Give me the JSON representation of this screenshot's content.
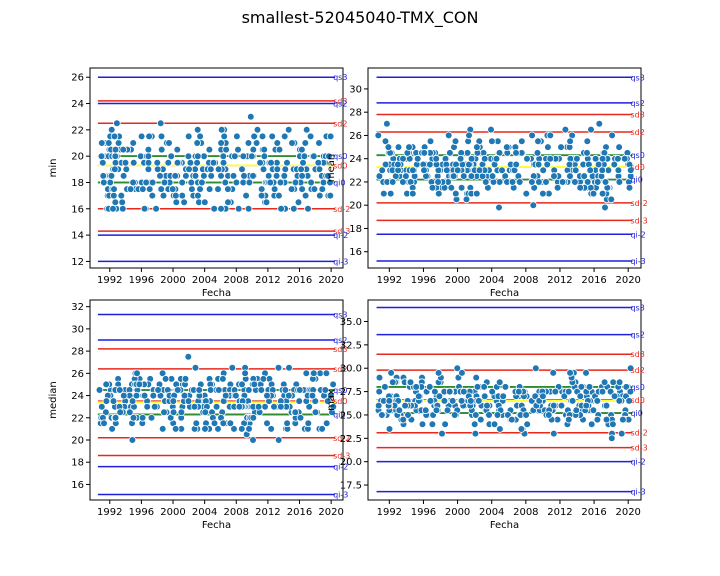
{
  "figure": {
    "suptitle": "smallest-52045040-TMX_CON",
    "colors": {
      "points": "#1f77b4",
      "qi_lines": "#1f1fdd",
      "sd_lines": "#e8281c",
      "mean_line": "#2e8b2e",
      "median_line": "#ffff33"
    }
  },
  "chart_data": [
    {
      "type": "scatter",
      "title": "",
      "xlabel": "Fecha",
      "ylabel": "min",
      "xlim": [
        1989.5,
        2021.5
      ],
      "ylim": [
        11.5,
        26.7
      ],
      "xticks": [
        1992,
        1996,
        2000,
        2004,
        2008,
        2012,
        2016,
        2020
      ],
      "yticks": [
        12,
        14,
        16,
        18,
        20,
        22,
        24,
        26
      ],
      "ytick_labels": [
        "12",
        "14",
        "16",
        "18",
        "20",
        "22",
        "24",
        "26"
      ],
      "hlines": [
        {
          "label": "qs3",
          "value": 26.0,
          "kind": "qi"
        },
        {
          "label": "sd3",
          "value": 24.2,
          "kind": "sd"
        },
        {
          "label": "qs2",
          "value": 24.0,
          "kind": "qi"
        },
        {
          "label": "sd2",
          "value": 22.5,
          "kind": "sd"
        },
        {
          "label": "qs0",
          "value": 20.0,
          "kind": "qi"
        },
        {
          "label": "sd0",
          "value": 19.3,
          "kind": "sd"
        },
        {
          "label": "qi0",
          "value": 18.0,
          "kind": "qi"
        },
        {
          "label": "sd-2",
          "value": 16.0,
          "kind": "sd"
        },
        {
          "label": "sd-3",
          "value": 14.3,
          "kind": "sd"
        },
        {
          "label": "qi-2",
          "value": 14.0,
          "kind": "qi"
        },
        {
          "label": "qi-3",
          "value": 12.0,
          "kind": "qi"
        }
      ],
      "mean": 20.0,
      "median": 19.3,
      "mean_alt": 18.0,
      "series": {
        "center": 19.0,
        "spread": 1.6,
        "min": 16.0,
        "max": 25.0
      }
    },
    {
      "type": "scatter",
      "title": "",
      "xlabel": "Fecha",
      "ylabel": "mean",
      "xlim": [
        1989.5,
        2021.5
      ],
      "ylim": [
        14.6,
        31.8
      ],
      "xticks": [
        1992,
        1996,
        2000,
        2004,
        2008,
        2012,
        2016,
        2020
      ],
      "yticks": [
        16,
        18,
        20,
        22,
        24,
        26,
        28,
        30
      ],
      "ytick_labels": [
        "16",
        "18",
        "20",
        "22",
        "24",
        "26",
        "28",
        "30"
      ],
      "hlines": [
        {
          "label": "qs3",
          "value": 31.0,
          "kind": "qi"
        },
        {
          "label": "qs2",
          "value": 28.8,
          "kind": "qi"
        },
        {
          "label": "sd3",
          "value": 27.8,
          "kind": "sd"
        },
        {
          "label": "sd2",
          "value": 26.3,
          "kind": "sd"
        },
        {
          "label": "qs0",
          "value": 24.3,
          "kind": "qi"
        },
        {
          "label": "sd0",
          "value": 23.3,
          "kind": "sd"
        },
        {
          "label": "qi0",
          "value": 22.2,
          "kind": "qi"
        },
        {
          "label": "sd-2",
          "value": 20.2,
          "kind": "sd"
        },
        {
          "label": "sd-3",
          "value": 18.7,
          "kind": "sd"
        },
        {
          "label": "qi-2",
          "value": 17.5,
          "kind": "qi"
        },
        {
          "label": "qi-3",
          "value": 15.2,
          "kind": "qi"
        }
      ],
      "mean": 24.3,
      "median": 23.3,
      "mean_alt": 22.2,
      "series": {
        "center": 23.3,
        "spread": 1.5,
        "min": 19.8,
        "max": 27.2
      }
    },
    {
      "type": "scatter",
      "title": "",
      "xlabel": "Fecha",
      "ylabel": "median",
      "xlim": [
        1989.5,
        2021.5
      ],
      "ylim": [
        14.6,
        32.6
      ],
      "xticks": [
        1992,
        1996,
        2000,
        2004,
        2008,
        2012,
        2016,
        2020
      ],
      "yticks": [
        16,
        18,
        20,
        22,
        24,
        26,
        28,
        30,
        32
      ],
      "ytick_labels": [
        "16",
        "18",
        "20",
        "22",
        "24",
        "26",
        "28",
        "30",
        "32"
      ],
      "hlines": [
        {
          "label": "qs3",
          "value": 31.3,
          "kind": "qi"
        },
        {
          "label": "qs2",
          "value": 29.0,
          "kind": "qi"
        },
        {
          "label": "sd3",
          "value": 28.2,
          "kind": "sd"
        },
        {
          "label": "sd2",
          "value": 26.4,
          "kind": "sd"
        },
        {
          "label": "qs0",
          "value": 24.5,
          "kind": "qi"
        },
        {
          "label": "sd0",
          "value": 23.5,
          "kind": "sd"
        },
        {
          "label": "qi0",
          "value": 22.3,
          "kind": "qi"
        },
        {
          "label": "sd-2",
          "value": 20.2,
          "kind": "sd"
        },
        {
          "label": "sd-3",
          "value": 18.6,
          "kind": "sd"
        },
        {
          "label": "qi-2",
          "value": 17.6,
          "kind": "qi"
        },
        {
          "label": "qi-3",
          "value": 15.1,
          "kind": "qi"
        }
      ],
      "mean": 24.5,
      "median": 23.4,
      "mean_alt": 22.3,
      "series": {
        "center": 23.4,
        "spread": 1.6,
        "min": 19.6,
        "max": 27.6
      }
    },
    {
      "type": "scatter",
      "title": "",
      "xlabel": "Fecha",
      "ylabel": "max",
      "xlim": [
        1989.5,
        2021.5
      ],
      "ylim": [
        15.9,
        37.3
      ],
      "xticks": [
        1992,
        1996,
        2000,
        2004,
        2008,
        2012,
        2016,
        2020
      ],
      "yticks": [
        17.5,
        20.0,
        22.5,
        25.0,
        27.5,
        30.0,
        32.5,
        35.0
      ],
      "ytick_labels": [
        "17.5",
        "20.0",
        "22.5",
        "25.0",
        "27.5",
        "30.0",
        "32.5",
        "35.0"
      ],
      "hlines": [
        {
          "label": "qs3",
          "value": 36.5,
          "kind": "qi"
        },
        {
          "label": "qs2",
          "value": 33.6,
          "kind": "qi"
        },
        {
          "label": "sd3",
          "value": 31.5,
          "kind": "sd"
        },
        {
          "label": "sd2",
          "value": 29.8,
          "kind": "sd"
        },
        {
          "label": "qs0",
          "value": 28.0,
          "kind": "qi"
        },
        {
          "label": "sd0",
          "value": 26.6,
          "kind": "sd"
        },
        {
          "label": "qi0",
          "value": 25.2,
          "kind": "qi"
        },
        {
          "label": "sd-2",
          "value": 23.1,
          "kind": "sd"
        },
        {
          "label": "sd-3",
          "value": 21.5,
          "kind": "sd"
        },
        {
          "label": "qi-2",
          "value": 20.0,
          "kind": "qi"
        },
        {
          "label": "qi-3",
          "value": 16.8,
          "kind": "qi"
        }
      ],
      "mean": 28.0,
      "median": 26.5,
      "mean_alt": 25.2,
      "series": {
        "center": 26.5,
        "spread": 1.7,
        "min": 22.2,
        "max": 30.0
      }
    }
  ]
}
